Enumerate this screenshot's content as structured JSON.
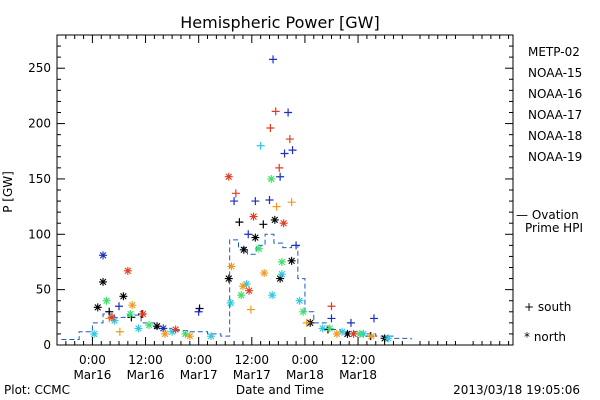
{
  "chart_data": {
    "type": "scatter",
    "title": "Hemispheric Power [GW]",
    "ylabel": "P [GW]",
    "xlabel": "Date and Time",
    "footer_left": "Plot: CCMC",
    "footer_right": "2013/03/18 19:05:06",
    "xlim_hours": [
      -4,
      47.5
    ],
    "ylim": [
      0,
      280
    ],
    "x_ticks": [
      {
        "x": 0,
        "time": "0:00",
        "date": "Mar16"
      },
      {
        "x": 6,
        "time": "12:00",
        "date": "Mar16"
      },
      {
        "x": 12,
        "time": "0:00",
        "date": "Mar17"
      },
      {
        "x": 18,
        "time": "12:00",
        "date": "Mar17"
      },
      {
        "x": 24,
        "time": "0:00",
        "date": "Mar18"
      },
      {
        "x": 30,
        "time": "12:00",
        "date": "Mar18"
      }
    ],
    "y_ticks": [
      "0",
      "50",
      "100",
      "150",
      "200",
      "250"
    ],
    "legend": [
      {
        "name": "METP-02",
        "color": "#000000"
      },
      {
        "name": "NOAA-15",
        "color": "#1c2fc0"
      },
      {
        "name": "NOAA-16",
        "color": "#2ec8e0"
      },
      {
        "name": "NOAA-17",
        "color": "#39e06a"
      },
      {
        "name": "NOAA-18",
        "color": "#f09a1c"
      },
      {
        "name": "NOAA-19",
        "color": "#e23a1c"
      }
    ],
    "ovation_label": [
      "— Ovation",
      "Prime HPI"
    ],
    "ovation_color": "#1c5ac0",
    "marker_legend": [
      {
        "symbol": "+",
        "label": "south"
      },
      {
        "symbol": "*",
        "label": "north"
      }
    ],
    "series": [
      {
        "satellite": "METP-02",
        "color": "#000000",
        "points": [
          {
            "x": 0.6,
            "y": 34,
            "m": "*"
          },
          {
            "x": 1.2,
            "y": 57,
            "m": "*"
          },
          {
            "x": 1.9,
            "y": 30,
            "m": "+"
          },
          {
            "x": 3.5,
            "y": 44,
            "m": "*"
          },
          {
            "x": 4.4,
            "y": 25,
            "m": "+"
          },
          {
            "x": 5.6,
            "y": 28,
            "m": "+"
          },
          {
            "x": 7.3,
            "y": 17,
            "m": "*"
          },
          {
            "x": 12.1,
            "y": 33,
            "m": "+"
          },
          {
            "x": 15.4,
            "y": 60,
            "m": "*"
          },
          {
            "x": 16.6,
            "y": 111,
            "m": "+"
          },
          {
            "x": 17.1,
            "y": 86,
            "m": "*"
          },
          {
            "x": 18.4,
            "y": 97,
            "m": "*"
          },
          {
            "x": 19.3,
            "y": 109,
            "m": "+"
          },
          {
            "x": 20.6,
            "y": 113,
            "m": "*"
          },
          {
            "x": 21.2,
            "y": 60,
            "m": "*"
          },
          {
            "x": 22.5,
            "y": 76,
            "m": "*"
          },
          {
            "x": 24.6,
            "y": 20,
            "m": "*"
          },
          {
            "x": 26.6,
            "y": 14,
            "m": "+"
          },
          {
            "x": 28.8,
            "y": 10,
            "m": "*"
          },
          {
            "x": 31.4,
            "y": 8,
            "m": "+"
          },
          {
            "x": 33.0,
            "y": 6,
            "m": "*"
          }
        ]
      },
      {
        "satellite": "NOAA-15",
        "color": "#1c2fc0",
        "points": [
          {
            "x": 1.2,
            "y": 81,
            "m": "*"
          },
          {
            "x": 3.0,
            "y": 35,
            "m": "+"
          },
          {
            "x": 8.0,
            "y": 15,
            "m": "*"
          },
          {
            "x": 12.0,
            "y": 30,
            "m": "+"
          },
          {
            "x": 16.0,
            "y": 130,
            "m": "+"
          },
          {
            "x": 17.6,
            "y": 100,
            "m": "+"
          },
          {
            "x": 18.4,
            "y": 130,
            "m": "+"
          },
          {
            "x": 20.0,
            "y": 131,
            "m": "+"
          },
          {
            "x": 20.4,
            "y": 258,
            "m": "+"
          },
          {
            "x": 21.2,
            "y": 152,
            "m": "+"
          },
          {
            "x": 21.7,
            "y": 173,
            "m": "+"
          },
          {
            "x": 22.1,
            "y": 210,
            "m": "+"
          },
          {
            "x": 22.6,
            "y": 176,
            "m": "+"
          },
          {
            "x": 23.0,
            "y": 90,
            "m": "+"
          },
          {
            "x": 27.0,
            "y": 24,
            "m": "+"
          },
          {
            "x": 29.2,
            "y": 20,
            "m": "+"
          },
          {
            "x": 31.8,
            "y": 24,
            "m": "+"
          }
        ]
      },
      {
        "satellite": "NOAA-16",
        "color": "#2ec8e0",
        "points": [
          {
            "x": 0.2,
            "y": 10,
            "m": "*"
          },
          {
            "x": 2.5,
            "y": 22,
            "m": "*"
          },
          {
            "x": 5.2,
            "y": 15,
            "m": "*"
          },
          {
            "x": 9.0,
            "y": 12,
            "m": "*"
          },
          {
            "x": 13.4,
            "y": 8,
            "m": "*"
          },
          {
            "x": 15.6,
            "y": 38,
            "m": "*"
          },
          {
            "x": 17.4,
            "y": 55,
            "m": "*"
          },
          {
            "x": 19.0,
            "y": 180,
            "m": "+"
          },
          {
            "x": 20.3,
            "y": 45,
            "m": "*"
          },
          {
            "x": 21.4,
            "y": 64,
            "m": "*"
          },
          {
            "x": 23.4,
            "y": 40,
            "m": "*"
          },
          {
            "x": 26.0,
            "y": 15,
            "m": "*"
          },
          {
            "x": 28.2,
            "y": 12,
            "m": "*"
          },
          {
            "x": 30.6,
            "y": 10,
            "m": "*"
          },
          {
            "x": 33.4,
            "y": 6,
            "m": "*"
          }
        ]
      },
      {
        "satellite": "NOAA-17",
        "color": "#39e06a",
        "points": [
          {
            "x": 1.6,
            "y": 40,
            "m": "*"
          },
          {
            "x": 4.3,
            "y": 28,
            "m": "*"
          },
          {
            "x": 6.4,
            "y": 18,
            "m": "*"
          },
          {
            "x": 10.5,
            "y": 10,
            "m": "*"
          },
          {
            "x": 16.8,
            "y": 45,
            "m": "*"
          },
          {
            "x": 18.8,
            "y": 87,
            "m": "*"
          },
          {
            "x": 20.2,
            "y": 150,
            "m": "*"
          },
          {
            "x": 21.4,
            "y": 75,
            "m": "*"
          },
          {
            "x": 23.8,
            "y": 30,
            "m": "*"
          },
          {
            "x": 26.8,
            "y": 15,
            "m": "*"
          },
          {
            "x": 30.2,
            "y": 10,
            "m": "*"
          }
        ]
      },
      {
        "satellite": "NOAA-18",
        "color": "#f09a1c",
        "points": [
          {
            "x": 1.9,
            "y": 24,
            "m": "+"
          },
          {
            "x": 3.1,
            "y": 12,
            "m": "+"
          },
          {
            "x": 4.5,
            "y": 36,
            "m": "*"
          },
          {
            "x": 8.2,
            "y": 10,
            "m": "*"
          },
          {
            "x": 11.0,
            "y": 8,
            "m": "*"
          },
          {
            "x": 15.7,
            "y": 71,
            "m": "*"
          },
          {
            "x": 17.0,
            "y": 53,
            "m": "*"
          },
          {
            "x": 17.9,
            "y": 32,
            "m": "+"
          },
          {
            "x": 19.4,
            "y": 65,
            "m": "*"
          },
          {
            "x": 20.8,
            "y": 125,
            "m": "+"
          },
          {
            "x": 22.5,
            "y": 129,
            "m": "+"
          },
          {
            "x": 24.2,
            "y": 20,
            "m": "+"
          },
          {
            "x": 27.6,
            "y": 10,
            "m": "*"
          },
          {
            "x": 31.5,
            "y": 8,
            "m": "*"
          }
        ]
      },
      {
        "satellite": "NOAA-19",
        "color": "#e23a1c",
        "points": [
          {
            "x": 2.2,
            "y": 25,
            "m": "*"
          },
          {
            "x": 4.0,
            "y": 67,
            "m": "*"
          },
          {
            "x": 5.7,
            "y": 28,
            "m": "*"
          },
          {
            "x": 9.4,
            "y": 14,
            "m": "*"
          },
          {
            "x": 15.4,
            "y": 152,
            "m": "*"
          },
          {
            "x": 16.2,
            "y": 137,
            "m": "+"
          },
          {
            "x": 17.7,
            "y": 49,
            "m": "*"
          },
          {
            "x": 18.2,
            "y": 116,
            "m": "*"
          },
          {
            "x": 20.1,
            "y": 196,
            "m": "+"
          },
          {
            "x": 20.7,
            "y": 211,
            "m": "+"
          },
          {
            "x": 21.1,
            "y": 160,
            "m": "+"
          },
          {
            "x": 22.3,
            "y": 186,
            "m": "+"
          },
          {
            "x": 21.6,
            "y": 110,
            "m": "*"
          },
          {
            "x": 27.0,
            "y": 35,
            "m": "+"
          },
          {
            "x": 29.5,
            "y": 10,
            "m": "*"
          }
        ]
      }
    ],
    "ovation_hpi": [
      {
        "x": -3.5,
        "y": 5
      },
      {
        "x": -1.5,
        "y": 12
      },
      {
        "x": 0,
        "y": 20
      },
      {
        "x": 1.2,
        "y": 28
      },
      {
        "x": 2.5,
        "y": 25
      },
      {
        "x": 4,
        "y": 27
      },
      {
        "x": 5.5,
        "y": 20
      },
      {
        "x": 7,
        "y": 15
      },
      {
        "x": 9,
        "y": 13
      },
      {
        "x": 11,
        "y": 12
      },
      {
        "x": 13,
        "y": 10
      },
      {
        "x": 14.5,
        "y": 8
      },
      {
        "x": 15.5,
        "y": 95
      },
      {
        "x": 16.5,
        "y": 88
      },
      {
        "x": 17.5,
        "y": 82
      },
      {
        "x": 18.5,
        "y": 90
      },
      {
        "x": 19.5,
        "y": 100
      },
      {
        "x": 20.5,
        "y": 92
      },
      {
        "x": 21.5,
        "y": 88
      },
      {
        "x": 22.5,
        "y": 90
      },
      {
        "x": 23.2,
        "y": 60
      },
      {
        "x": 24,
        "y": 30
      },
      {
        "x": 25,
        "y": 20
      },
      {
        "x": 26.5,
        "y": 14
      },
      {
        "x": 28,
        "y": 12
      },
      {
        "x": 30,
        "y": 10
      },
      {
        "x": 32,
        "y": 8
      },
      {
        "x": 34,
        "y": 6
      },
      {
        "x": 36,
        "y": 5
      }
    ]
  }
}
